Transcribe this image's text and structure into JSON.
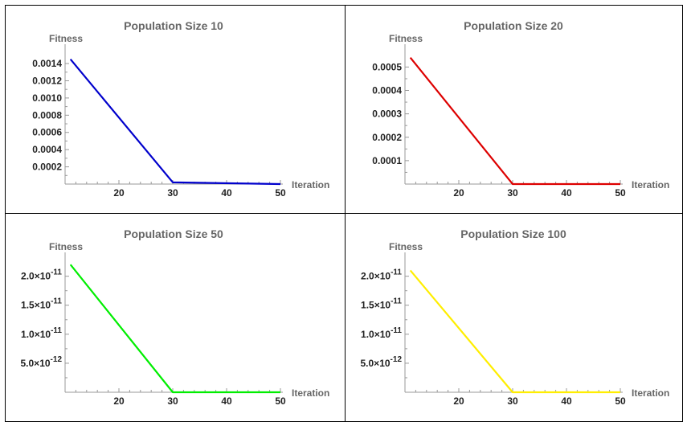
{
  "chart_data": [
    {
      "type": "line",
      "title": "Population Size 10",
      "xlabel": "Iteration",
      "ylabel": "Fitness",
      "color": "#0000cc",
      "xlim": [
        10,
        50
      ],
      "ylim": [
        0,
        0.00155
      ],
      "x_ticks": [
        20,
        30,
        40,
        50
      ],
      "y_ticks": [
        {
          "v": 0.0002,
          "label": "0.0002"
        },
        {
          "v": 0.0004,
          "label": "0.0004"
        },
        {
          "v": 0.0006,
          "label": "0.0006"
        },
        {
          "v": 0.0008,
          "label": "0.0008"
        },
        {
          "v": 0.001,
          "label": "0.0010"
        },
        {
          "v": 0.0012,
          "label": "0.0012"
        },
        {
          "v": 0.0014,
          "label": "0.0014"
        }
      ],
      "series": [
        {
          "x": [
            11,
            30,
            50
          ],
          "y": [
            0.00145,
            2e-05,
            0.0
          ]
        }
      ]
    },
    {
      "type": "line",
      "title": "Population Size 20",
      "xlabel": "Iteration",
      "ylabel": "Fitness",
      "color": "#dd0000",
      "xlim": [
        10,
        50
      ],
      "ylim": [
        0,
        0.00057
      ],
      "x_ticks": [
        20,
        30,
        40,
        50
      ],
      "y_ticks": [
        {
          "v": 0.0001,
          "label": "0.0001"
        },
        {
          "v": 0.0002,
          "label": "0.0002"
        },
        {
          "v": 0.0003,
          "label": "0.0003"
        },
        {
          "v": 0.0004,
          "label": "0.0004"
        },
        {
          "v": 0.0005,
          "label": "0.0005"
        }
      ],
      "series": [
        {
          "x": [
            11,
            30,
            50
          ],
          "y": [
            0.00054,
            0.0,
            0.0
          ]
        }
      ]
    },
    {
      "type": "line",
      "title": "Population Size 50",
      "xlabel": "Iteration",
      "ylabel": "Fitness",
      "color": "#00ee00",
      "xlim": [
        10,
        50
      ],
      "ylim": [
        0,
        2.3e-11
      ],
      "x_ticks": [
        20,
        30,
        40,
        50
      ],
      "y_ticks": [
        {
          "v": 5e-12,
          "mant": "5.0",
          "exp": "-12"
        },
        {
          "v": 1e-11,
          "mant": "1.0",
          "exp": "-11"
        },
        {
          "v": 1.5e-11,
          "mant": "1.5",
          "exp": "-11"
        },
        {
          "v": 2e-11,
          "mant": "2.0",
          "exp": "-11"
        }
      ],
      "series": [
        {
          "x": [
            11,
            30,
            50
          ],
          "y": [
            2.2e-11,
            0.0,
            0.0
          ]
        }
      ]
    },
    {
      "type": "line",
      "title": "Population Size 100",
      "xlabel": "Iteration",
      "ylabel": "Fitness",
      "color": "#ffee00",
      "xlim": [
        10,
        50
      ],
      "ylim": [
        0,
        2.3e-11
      ],
      "x_ticks": [
        20,
        30,
        40,
        50
      ],
      "y_ticks": [
        {
          "v": 5e-12,
          "mant": "5.0",
          "exp": "-12"
        },
        {
          "v": 1e-11,
          "mant": "1.0",
          "exp": "-11"
        },
        {
          "v": 1.5e-11,
          "mant": "1.5",
          "exp": "-11"
        },
        {
          "v": 2e-11,
          "mant": "2.0",
          "exp": "-11"
        }
      ],
      "series": [
        {
          "x": [
            11,
            30,
            50
          ],
          "y": [
            2.1e-11,
            0.0,
            0.0
          ]
        }
      ]
    }
  ]
}
